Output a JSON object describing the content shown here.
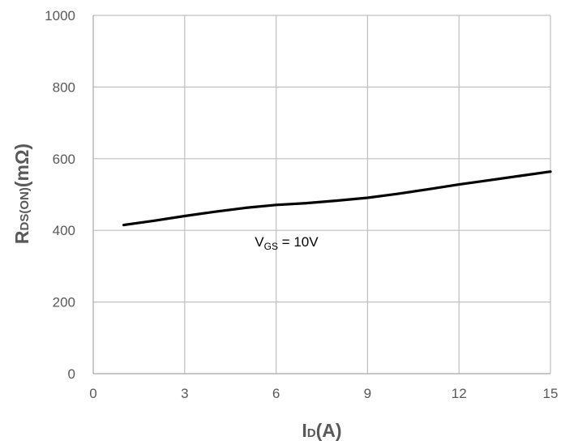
{
  "chart_data": {
    "type": "line",
    "xlabel": {
      "main": "I",
      "sub": "D",
      "unit": "(A)"
    },
    "ylabel": {
      "main": "R",
      "sub": "DS(ON)",
      "unit": "(mΩ)"
    },
    "xlim": [
      0,
      15
    ],
    "ylim": [
      0,
      1000
    ],
    "x_ticks": [
      0,
      3,
      6,
      9,
      12,
      15
    ],
    "y_ticks": [
      0,
      200,
      400,
      600,
      800,
      1000
    ],
    "grid": true,
    "series": [
      {
        "x": [
          1,
          2,
          3,
          4,
          5,
          6,
          7,
          8,
          9,
          10,
          11,
          12,
          13,
          14,
          15
        ],
        "y": [
          415,
          427,
          440,
          452,
          463,
          471,
          476,
          483,
          491,
          502,
          515,
          528,
          540,
          552,
          564
        ],
        "color": "#000000"
      }
    ],
    "annotation": {
      "main": "V",
      "sub": "GS",
      "rest": " = 10V",
      "x": 5.3,
      "y": 355
    }
  }
}
